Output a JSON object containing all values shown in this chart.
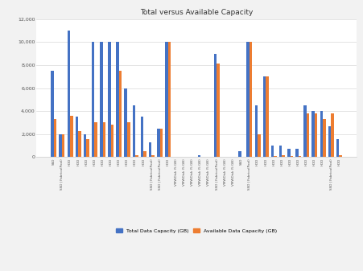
{
  "title": "Total versus Available Capacity",
  "categories": [
    "SSD",
    "SSD | Fabrica(Pool)",
    "HDD",
    "HDD",
    "HDD",
    "HDD",
    "HDD",
    "HDD",
    "HDD",
    "HDD",
    "HDD",
    "HDD",
    "SSD | Fabrica(Pool)",
    "SSD | Fabrica(Pool)",
    "HDD",
    "VMWDisk (5 GB)",
    "VMWDisk (5 GB)",
    "VMWDisk (5 GB)",
    "VMWDisk (5 GB)",
    "VMWDisk (5 GB)",
    "SSD | Fabrica(Pool)",
    "VMWDisk (5 GB)",
    "VMWDisk (5 GB)",
    "SSD",
    "SSD | Fabrica(Pool)",
    "HDD",
    "HDD",
    "HDD",
    "HDD",
    "HDD",
    "HDD",
    "HDD",
    "HDD",
    "HDD",
    "SSD | Fabrica(Pool)",
    "HDD"
  ],
  "total": [
    7500,
    2000,
    11000,
    3500,
    2000,
    10000,
    10000,
    10000,
    10000,
    6000,
    4500,
    3500,
    1300,
    2500,
    10000,
    50,
    50,
    50,
    150,
    50,
    9000,
    50,
    50,
    500,
    10000,
    4500,
    7000,
    1000,
    1000,
    700,
    700,
    4500,
    4000,
    4000,
    2700,
    1600
  ],
  "available": [
    3300,
    2000,
    3600,
    2300,
    1600,
    3000,
    3000,
    2800,
    7500,
    3000,
    200,
    500,
    200,
    2500,
    10000,
    50,
    50,
    50,
    50,
    50,
    8100,
    50,
    50,
    50,
    10000,
    2000,
    7000,
    100,
    200,
    100,
    100,
    3800,
    3800,
    3300,
    3800,
    200
  ],
  "bar_color_total": "#4472c4",
  "bar_color_available": "#ed7d31",
  "legend_total": "Total Data Capacity (GB)",
  "legend_available": "Available Data Capacity (GB)",
  "ylim": [
    0,
    12000
  ],
  "yticks": [
    0,
    2000,
    4000,
    6000,
    8000,
    10000,
    12000
  ],
  "ytick_labels": [
    "0",
    "2,000",
    "4,000",
    "6,000",
    "8,000",
    "10,000",
    "12,000"
  ],
  "background_color": "#f2f2f2",
  "plot_bg_color": "#ffffff",
  "grid_color": "#d9d9d9"
}
